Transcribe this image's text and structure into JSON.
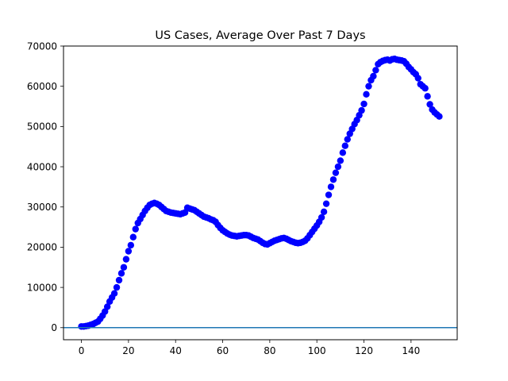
{
  "chart_data": {
    "type": "scatter",
    "title": "US Cases, Average Over Past 7 Days",
    "xlabel": "",
    "ylabel": "",
    "xlim": [
      -7.6,
      159.6
    ],
    "ylim": [
      -3000,
      70000
    ],
    "grid": false,
    "x_ticks": [
      0,
      20,
      40,
      60,
      80,
      100,
      120,
      140
    ],
    "y_ticks": [
      0,
      10000,
      20000,
      30000,
      40000,
      50000,
      60000,
      70000
    ],
    "marker_color": "#0000ff",
    "hline": {
      "y": 0,
      "color": "#1f77b4"
    },
    "x": [
      0,
      1,
      2,
      3,
      4,
      5,
      6,
      7,
      8,
      9,
      10,
      11,
      12,
      13,
      14,
      15,
      16,
      17,
      18,
      19,
      20,
      21,
      22,
      23,
      24,
      25,
      26,
      27,
      28,
      29,
      30,
      31,
      32,
      33,
      34,
      35,
      36,
      37,
      38,
      39,
      40,
      41,
      42,
      43,
      44,
      45,
      46,
      47,
      48,
      49,
      50,
      51,
      52,
      53,
      54,
      55,
      56,
      57,
      58,
      59,
      60,
      61,
      62,
      63,
      64,
      65,
      66,
      67,
      68,
      69,
      70,
      71,
      72,
      73,
      74,
      75,
      76,
      77,
      78,
      79,
      80,
      81,
      82,
      83,
      84,
      85,
      86,
      87,
      88,
      89,
      90,
      91,
      92,
      93,
      94,
      95,
      96,
      97,
      98,
      99,
      100,
      101,
      102,
      103,
      104,
      105,
      106,
      107,
      108,
      109,
      110,
      111,
      112,
      113,
      114,
      115,
      116,
      117,
      118,
      119,
      120,
      121,
      122,
      123,
      124,
      125,
      126,
      127,
      128,
      129,
      130,
      131,
      132,
      133,
      134,
      135,
      136,
      137,
      138,
      139,
      140,
      141,
      142,
      143,
      144,
      145,
      146,
      147,
      148,
      149,
      150,
      151,
      152
    ],
    "y": [
      300,
      300,
      400,
      500,
      700,
      900,
      1200,
      1500,
      2200,
      3000,
      4000,
      5200,
      6500,
      7500,
      8500,
      10000,
      11800,
      13500,
      15000,
      17000,
      19000,
      20500,
      22500,
      24500,
      26000,
      27000,
      28000,
      29000,
      29800,
      30500,
      30800,
      31000,
      30800,
      30500,
      30000,
      29500,
      29000,
      28800,
      28600,
      28500,
      28400,
      28300,
      28200,
      28400,
      28600,
      29800,
      29600,
      29400,
      29200,
      28800,
      28400,
      28000,
      27600,
      27400,
      27200,
      26900,
      26700,
      26300,
      25500,
      24800,
      24200,
      23800,
      23400,
      23100,
      22900,
      22800,
      22700,
      22800,
      22900,
      23000,
      23000,
      22900,
      22600,
      22300,
      22100,
      21900,
      21500,
      21100,
      20800,
      20700,
      21000,
      21300,
      21600,
      21800,
      22000,
      22200,
      22300,
      22100,
      21800,
      21500,
      21300,
      21100,
      21000,
      21100,
      21300,
      21600,
      22200,
      23000,
      23800,
      24600,
      25400,
      26300,
      27400,
      28800,
      30800,
      33000,
      35000,
      36800,
      38500,
      40000,
      41500,
      43500,
      45200,
      46800,
      48200,
      49400,
      50600,
      51600,
      52800,
      54000,
      55600,
      58000,
      60000,
      61500,
      62500,
      64000,
      65500,
      66000,
      66300,
      66500,
      66600,
      66400,
      66700,
      66800,
      66600,
      66500,
      66400,
      66200,
      65600,
      64800,
      64200,
      63500,
      63000,
      62000,
      60500,
      60000,
      59500,
      57500,
      55500,
      54200,
      53500,
      53000,
      52500
    ]
  }
}
